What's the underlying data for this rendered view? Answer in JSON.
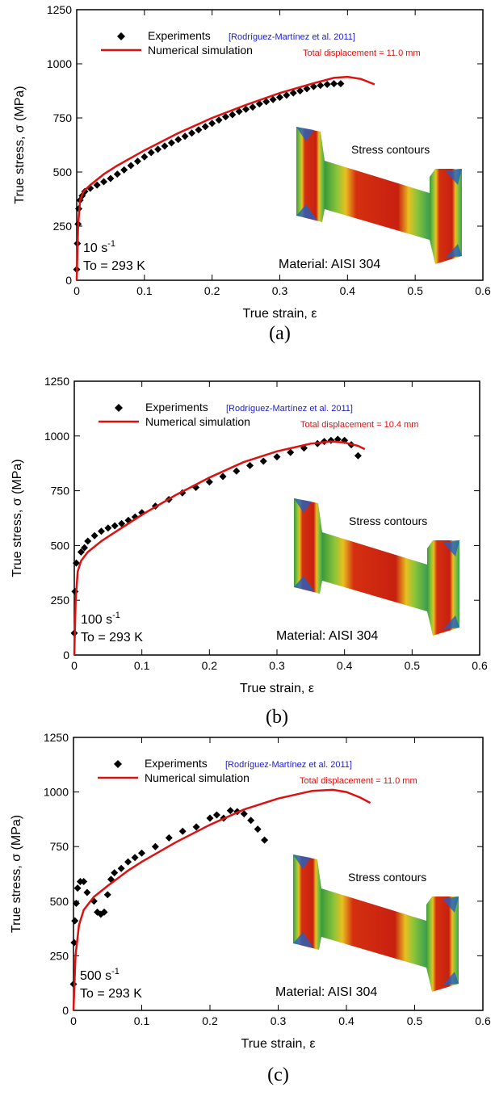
{
  "chart_data": [
    {
      "type": "scatter",
      "caption": "(a)",
      "x_label": "True strain, ε",
      "y_label": "True stress, σ (MPa)",
      "xlim": [
        0,
        0.6
      ],
      "xticks": [
        0,
        0.1,
        0.2,
        0.3,
        0.4,
        0.5,
        0.6
      ],
      "ylim": [
        0,
        1250
      ],
      "yticks": [
        0,
        250,
        500,
        750,
        1000,
        1250
      ],
      "citation": "[Rodríguez-Martínez et al. 2011]",
      "displacement": "Total displacement = 11.0 mm",
      "contour_label": "Stress contours",
      "material": "Material: AISI 304",
      "rate": {
        "text": "10 s",
        "superscript": "-1"
      },
      "temperature": "To = 293 K",
      "series": [
        {
          "name": "Experiments",
          "mode": "markers",
          "color": "#000000",
          "x": [
            0,
            0.001,
            0.002,
            0.003,
            0.005,
            0.008,
            0.012,
            0.02,
            0.03,
            0.04,
            0.05,
            0.06,
            0.07,
            0.08,
            0.09,
            0.1,
            0.11,
            0.12,
            0.13,
            0.14,
            0.15,
            0.16,
            0.17,
            0.18,
            0.19,
            0.2,
            0.21,
            0.22,
            0.23,
            0.24,
            0.25,
            0.26,
            0.27,
            0.28,
            0.29,
            0.3,
            0.31,
            0.32,
            0.33,
            0.34,
            0.35,
            0.36,
            0.37,
            0.38,
            0.39
          ],
          "values": [
            50,
            170,
            260,
            330,
            370,
            390,
            410,
            425,
            440,
            455,
            470,
            490,
            510,
            530,
            550,
            570,
            590,
            605,
            620,
            635,
            650,
            665,
            680,
            695,
            710,
            725,
            740,
            755,
            765,
            780,
            790,
            800,
            815,
            825,
            835,
            845,
            855,
            865,
            875,
            885,
            895,
            900,
            905,
            908,
            908
          ]
        },
        {
          "name": "Numerical simulation",
          "mode": "line",
          "color": "#dd1111",
          "x": [
            0,
            0.002,
            0.005,
            0.01,
            0.02,
            0.04,
            0.06,
            0.1,
            0.15,
            0.2,
            0.25,
            0.3,
            0.35,
            0.38,
            0.4,
            0.42,
            0.44
          ],
          "values": [
            0,
            250,
            370,
            410,
            440,
            490,
            530,
            600,
            680,
            750,
            810,
            865,
            910,
            935,
            940,
            930,
            905
          ]
        }
      ]
    },
    {
      "type": "scatter",
      "caption": "(b)",
      "x_label": "True strain, ε",
      "y_label": "True stress, σ (MPa)",
      "xlim": [
        0,
        0.6
      ],
      "xticks": [
        0,
        0.1,
        0.2,
        0.3,
        0.4,
        0.5,
        0.6
      ],
      "ylim": [
        0,
        1250
      ],
      "yticks": [
        0,
        250,
        500,
        750,
        1000,
        1250
      ],
      "citation": "[Rodríguez-Martínez et al. 2011]",
      "displacement": "Total displacement = 10.4 mm",
      "contour_label": "Stress contours",
      "material": "Material: AISI 304",
      "rate": {
        "text": "100 s",
        "superscript": "-1"
      },
      "temperature": "To = 293 K",
      "series": [
        {
          "name": "Experiments",
          "mode": "markers",
          "color": "#000000",
          "x": [
            0,
            0.001,
            0.003,
            0.01,
            0.015,
            0.02,
            0.03,
            0.04,
            0.05,
            0.06,
            0.07,
            0.08,
            0.09,
            0.1,
            0.12,
            0.14,
            0.16,
            0.18,
            0.2,
            0.22,
            0.24,
            0.26,
            0.28,
            0.3,
            0.32,
            0.34,
            0.36,
            0.37,
            0.38,
            0.39,
            0.4,
            0.41,
            0.42
          ],
          "values": [
            100,
            290,
            420,
            470,
            490,
            520,
            545,
            565,
            580,
            590,
            600,
            615,
            630,
            650,
            680,
            710,
            740,
            765,
            790,
            815,
            840,
            865,
            885,
            905,
            925,
            945,
            965,
            975,
            980,
            985,
            980,
            960,
            910
          ]
        },
        {
          "name": "Numerical simulation",
          "mode": "line",
          "color": "#dd1111",
          "x": [
            0,
            0.002,
            0.005,
            0.01,
            0.02,
            0.04,
            0.06,
            0.1,
            0.15,
            0.2,
            0.25,
            0.3,
            0.35,
            0.38,
            0.4,
            0.42,
            0.43
          ],
          "values": [
            0,
            250,
            380,
            430,
            470,
            520,
            560,
            640,
            730,
            810,
            880,
            930,
            965,
            975,
            970,
            955,
            940
          ]
        }
      ]
    },
    {
      "type": "scatter",
      "caption": "(c)",
      "x_label": "True strain, ε",
      "y_label": "True stress, σ (MPa)",
      "xlim": [
        0,
        0.6
      ],
      "xticks": [
        0,
        0.1,
        0.2,
        0.3,
        0.4,
        0.5,
        0.6
      ],
      "ylim": [
        0,
        1250
      ],
      "yticks": [
        0,
        250,
        500,
        750,
        1000,
        1250
      ],
      "citation": "[Rodríguez-Martínez et al. 2011]",
      "displacement": "Total displacement = 11.0 mm",
      "contour_label": "Stress contours",
      "material": "Material: AISI 304",
      "rate": {
        "text": "500 s",
        "superscript": "-1"
      },
      "temperature": "To = 293 K",
      "series": [
        {
          "name": "Experiments",
          "mode": "markers",
          "color": "#000000",
          "x": [
            0,
            0.001,
            0.002,
            0.004,
            0.006,
            0.01,
            0.015,
            0.02,
            0.03,
            0.035,
            0.04,
            0.045,
            0.05,
            0.055,
            0.06,
            0.07,
            0.08,
            0.09,
            0.1,
            0.12,
            0.14,
            0.16,
            0.18,
            0.2,
            0.21,
            0.22,
            0.23,
            0.24,
            0.25,
            0.26,
            0.27,
            0.28
          ],
          "values": [
            120,
            310,
            410,
            490,
            560,
            590,
            590,
            540,
            500,
            450,
            440,
            450,
            530,
            600,
            630,
            650,
            680,
            700,
            720,
            750,
            790,
            820,
            840,
            880,
            895,
            880,
            915,
            910,
            900,
            870,
            830,
            780
          ]
        },
        {
          "name": "Numerical simulation",
          "mode": "line",
          "color": "#dd1111",
          "x": [
            0,
            0.003,
            0.008,
            0.015,
            0.03,
            0.05,
            0.08,
            0.1,
            0.15,
            0.2,
            0.25,
            0.3,
            0.35,
            0.38,
            0.4,
            0.42,
            0.435
          ],
          "values": [
            0,
            250,
            390,
            460,
            520,
            570,
            640,
            680,
            770,
            850,
            920,
            970,
            1005,
            1010,
            1000,
            975,
            950
          ]
        }
      ]
    }
  ]
}
